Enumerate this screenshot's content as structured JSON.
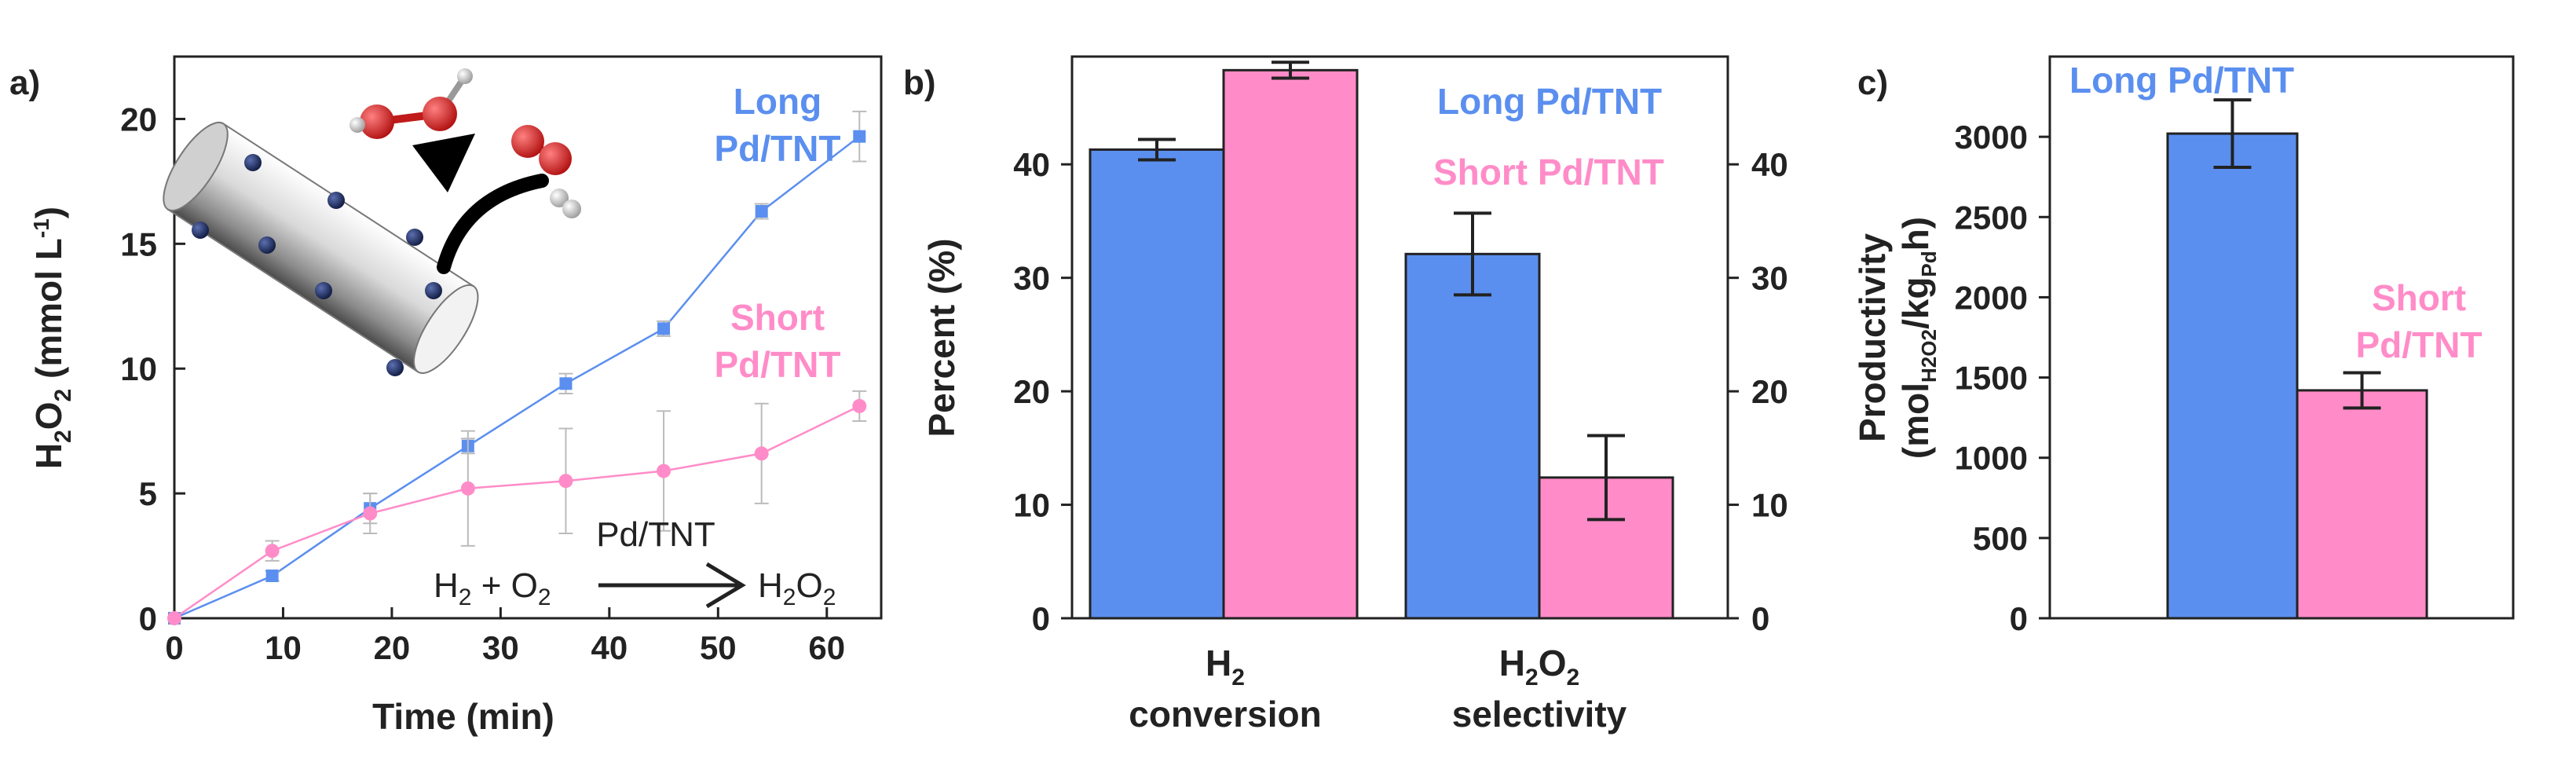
{
  "colors": {
    "long": "#5b8fef",
    "short": "#ff8cc8",
    "axis": "#222222",
    "catalyst_dot": "#1c2a57",
    "oxygen": "#d42a2a",
    "hydrogen": "#e6e6e6"
  },
  "chart_data": [
    {
      "panel_label": "a)",
      "type": "line",
      "xlabel": "Time (min)",
      "ylabel": {
        "prefix": "H",
        "sub1": "2",
        "mid": "O",
        "sub2": "2",
        "rest": " (mmol L",
        "sup": "-1",
        "close": ")"
      },
      "xlim": [
        0,
        65
      ],
      "ylim": [
        0,
        22.5
      ],
      "xticks": [
        0,
        10,
        20,
        30,
        40,
        50,
        60
      ],
      "yticks": [
        0,
        5,
        10,
        15,
        20
      ],
      "series": [
        {
          "name_line1": "Long",
          "name_line2": "Pd/TNT",
          "color_key": "long",
          "marker": "square",
          "x": [
            0,
            9,
            18,
            27,
            36,
            45,
            54,
            63
          ],
          "y": [
            0.0,
            1.7,
            4.4,
            6.9,
            9.4,
            11.6,
            16.3,
            19.3
          ],
          "err": [
            0,
            0.2,
            0.6,
            0.3,
            0.4,
            0.3,
            0.3,
            1.0
          ]
        },
        {
          "name_line1": "Short",
          "name_line2": "Pd/TNT",
          "color_key": "short",
          "marker": "circle",
          "x": [
            0,
            9,
            18,
            27,
            36,
            45,
            54,
            63
          ],
          "y": [
            0.0,
            2.7,
            4.2,
            5.2,
            5.5,
            5.9,
            6.6,
            8.5
          ],
          "err": [
            0,
            0.4,
            0.8,
            2.3,
            2.1,
            2.4,
            2.0,
            0.6
          ]
        }
      ],
      "reaction": {
        "catalyst": "Pd/TNT",
        "lhs_h": "H",
        "lhs_h_sub": "2",
        "plus": " + O",
        "lhs_o_sub": "2",
        "rhs_h": "H",
        "rhs_h_sub": "2",
        "rhs_o": "O",
        "rhs_o_sub": "2"
      }
    },
    {
      "panel_label": "b)",
      "type": "bar",
      "ylabel": "Percent (%)",
      "ylim": [
        0,
        49.5
      ],
      "yticks": [
        0,
        10,
        20,
        30,
        40
      ],
      "right_yticks": [
        0,
        10,
        20,
        30,
        40
      ],
      "categories": [
        {
          "line1": "H",
          "line1_sub": "2",
          "line1_mid": "",
          "line1_sub2": "",
          "line2": "conversion"
        },
        {
          "line1": "H",
          "line1_sub": "2",
          "line1_mid": "O",
          "line1_sub2": "2",
          "line2": "selectivity"
        }
      ],
      "series": [
        {
          "name": "Long Pd/TNT",
          "color_key": "long",
          "values": [
            41.3,
            32.1
          ],
          "err": [
            0.9,
            3.6
          ]
        },
        {
          "name": "Short Pd/TNT",
          "color_key": "short",
          "values": [
            48.3,
            12.4
          ],
          "err": [
            0.7,
            3.7
          ]
        }
      ]
    },
    {
      "panel_label": "c)",
      "type": "bar",
      "ylabel_line1": "Productivity",
      "ylabel_line2": {
        "pre": "(mol",
        "sub1": "H2O2",
        "mid": "/kg",
        "sub2": "Pd",
        "post": "h)"
      },
      "ylim": [
        0,
        3500
      ],
      "yticks": [
        0,
        500,
        1000,
        1500,
        2000,
        2500,
        3000
      ],
      "series": [
        {
          "name": "Long Pd/TNT",
          "color_key": "long",
          "value": 3020,
          "err": 210
        },
        {
          "name_line1": "Short",
          "name_line2": "Pd/TNT",
          "color_key": "short",
          "value": 1420,
          "err": 110
        }
      ]
    }
  ]
}
